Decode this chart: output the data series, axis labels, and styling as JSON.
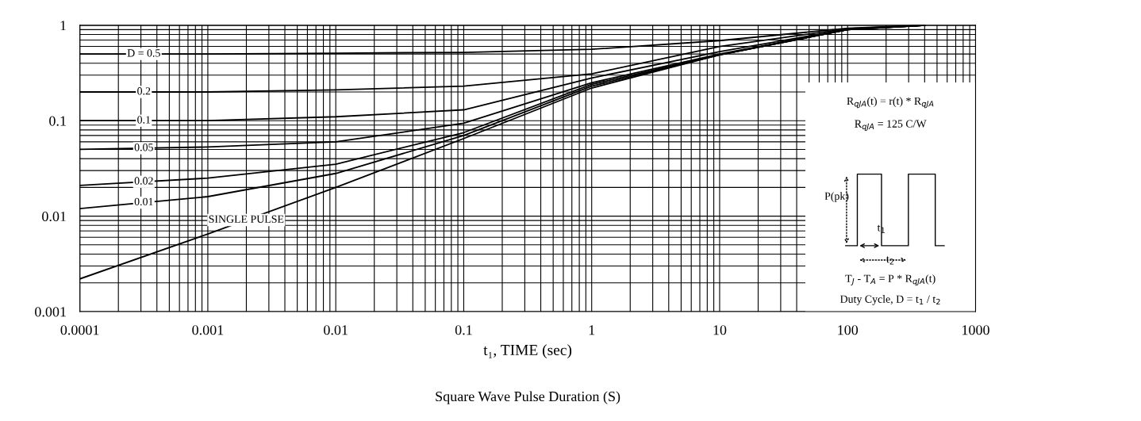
{
  "chart_data": {
    "type": "line",
    "xlabel": "t₁, TIME (sec)",
    "x": [
      0.0001,
      0.001,
      0.01,
      0.1,
      1,
      10,
      100,
      400
    ],
    "series": [
      {
        "name": "D = 0.5",
        "color": "#000000",
        "values": [
          0.5,
          0.5,
          0.51,
          0.52,
          0.56,
          0.69,
          0.93,
          1.0
        ]
      },
      {
        "name": "0.2",
        "color": "#000000",
        "values": [
          0.2,
          0.2,
          0.21,
          0.23,
          0.31,
          0.6,
          0.92,
          1.0
        ]
      },
      {
        "name": "0.1",
        "color": "#000000",
        "values": [
          0.1,
          0.1,
          0.11,
          0.13,
          0.28,
          0.53,
          0.91,
          1.0
        ]
      },
      {
        "name": "0.05",
        "color": "#000000",
        "values": [
          0.05,
          0.053,
          0.06,
          0.094,
          0.25,
          0.5,
          0.9,
          1.0
        ]
      },
      {
        "name": "0.02",
        "color": "#000000",
        "values": [
          0.021,
          0.025,
          0.035,
          0.075,
          0.24,
          0.49,
          0.9,
          1.0
        ]
      },
      {
        "name": "0.01",
        "color": "#000000",
        "values": [
          0.012,
          0.016,
          0.028,
          0.07,
          0.23,
          0.49,
          0.9,
          1.0
        ]
      },
      {
        "name": "SINGLE PULSE",
        "color": "#000000",
        "values": [
          0.0022,
          0.0065,
          0.02,
          0.065,
          0.22,
          0.49,
          0.9,
          1.0
        ]
      }
    ],
    "log": "xy",
    "xlim": [
      0.0001,
      1000
    ],
    "ylim": [
      0.001,
      1
    ],
    "xticks": [
      0.0001,
      0.001,
      0.01,
      0.1,
      1,
      10,
      100,
      1000
    ],
    "yticks": [
      0.001,
      0.01,
      0.1,
      1
    ],
    "grid": true,
    "marker": "none",
    "line_style": "solid",
    "legend": false,
    "annotations": [
      "Square Wave Pulse Duration (S)",
      "R$_{qJA}$(t) = r(t) * R$_{qJA}$",
      "R$_{qJA}$ = 125 C/W",
      "P(pk)",
      "t$_{1}$",
      "t$_{2}$",
      "T$_{J}$ - T$_{A}$ = P * R$_{qJA}$(t)",
      "Duty Cycle, D = t$_{1}$ / t$_{2}$"
    ]
  }
}
